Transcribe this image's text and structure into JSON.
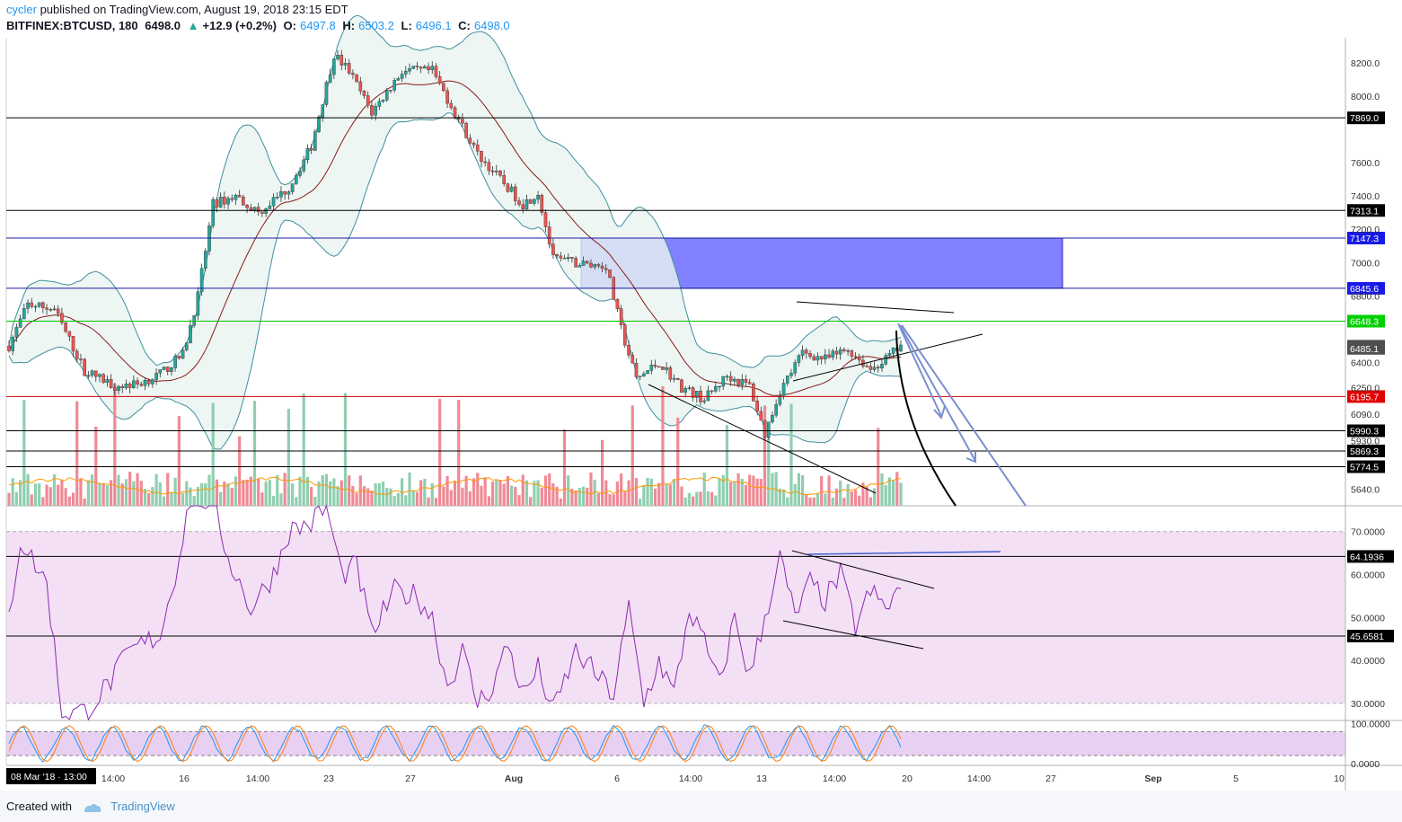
{
  "header": {
    "publisher": "cycler",
    "published_text": "published on TradingView.com, August 19, 2018 23:15 EDT",
    "symbol": "BITFINEX:BTCUSD, 180",
    "last": "6498.0",
    "change": "+12.9 (+0.2%)",
    "o_label": "O:",
    "o_val": "6497.8",
    "h_label": "H:",
    "h_val": "6503.2",
    "l_label": "L:",
    "l_val": "6496.1",
    "c_label": "C:",
    "c_val": "6498.0"
  },
  "footer": {
    "created_with": "Created with",
    "brand": "TradingView"
  },
  "colors": {
    "up": "#26a69a",
    "down": "#ef5350",
    "bb": "#3f8f9f",
    "bb_fill": "#e8f4f0",
    "ma": "#8b1a1a",
    "zone": "#6b6bff",
    "rsi": "#8b2bb0",
    "rsi_bg": "#f3e0f5",
    "stoch_k": "#2196f3",
    "stoch_d": "#ff7f0e",
    "stoch_bg": "#e8d0f3",
    "vol_ma": "#ff9800"
  },
  "chart_data": [
    {
      "type": "candlestick",
      "title": "",
      "ylim": [
        5540,
        8350
      ],
      "x_ticks": [
        "14:00",
        "16",
        "14:00",
        "23",
        "27",
        "Aug",
        "6",
        "14:00",
        "13",
        "14:00",
        "20",
        "14:00",
        "27",
        "Sep",
        "5",
        "10"
      ],
      "y_ticks": [
        8200,
        8000,
        7600,
        7400,
        7200,
        7000,
        6800,
        6400,
        6250,
        6090,
        5930,
        5640
      ],
      "y_tick_labels": [
        "8200.0",
        "8000.0",
        "7600.0",
        "7400.0",
        "7200.0",
        "7000.0",
        "6800.0",
        "6400.0",
        "6250.0",
        "6090.0",
        "5930.0",
        "5640.0"
      ],
      "cursor_date_label": "08 Mar '18 · 13:00",
      "price_path": [
        [
          0,
          6500
        ],
        [
          5,
          6750
        ],
        [
          12,
          6720
        ],
        [
          20,
          6350
        ],
        [
          28,
          6260
        ],
        [
          34,
          6270
        ],
        [
          40,
          6330
        ],
        [
          46,
          6450
        ],
        [
          50,
          6800
        ],
        [
          54,
          7350
        ],
        [
          60,
          7400
        ],
        [
          66,
          7300
        ],
        [
          74,
          7450
        ],
        [
          80,
          7700
        ],
        [
          86,
          8250
        ],
        [
          90,
          8150
        ],
        [
          96,
          7900
        ],
        [
          104,
          8150
        ],
        [
          112,
          8150
        ],
        [
          118,
          7900
        ],
        [
          124,
          7650
        ],
        [
          130,
          7500
        ],
        [
          136,
          7350
        ],
        [
          140,
          7420
        ],
        [
          144,
          7020
        ],
        [
          152,
          6990
        ],
        [
          158,
          6980
        ],
        [
          162,
          6600
        ],
        [
          166,
          6300
        ],
        [
          172,
          6400
        ],
        [
          178,
          6250
        ],
        [
          184,
          6180
        ],
        [
          190,
          6320
        ],
        [
          196,
          6260
        ],
        [
          200,
          5970
        ],
        [
          204,
          6230
        ],
        [
          210,
          6460
        ],
        [
          216,
          6420
        ],
        [
          222,
          6480
        ],
        [
          228,
          6360
        ],
        [
          232,
          6420
        ],
        [
          236,
          6500
        ]
      ],
      "horizontal_levels": [
        {
          "value": 7869.0,
          "label": "7869.0",
          "color": "#000000",
          "badge": "#000000"
        },
        {
          "value": 7313.1,
          "label": "7313.1",
          "color": "#000000",
          "badge": "#000000"
        },
        {
          "value": 7147.3,
          "label": "7147.3",
          "color": "#1a1aa0",
          "badge": "#1a1ae6"
        },
        {
          "value": 6845.6,
          "label": "6845.6",
          "color": "#1a1aa0",
          "badge": "#1a1ae6"
        },
        {
          "value": 6648.3,
          "label": "6648.3",
          "color": "#00c800",
          "badge": "#00d000"
        },
        {
          "value": 6195.7,
          "label": "6195.7",
          "color": "#d00000",
          "badge": "#e00000"
        },
        {
          "value": 5990.3,
          "label": "5990.3",
          "color": "#000000",
          "badge": "#000000"
        },
        {
          "value": 5869.3,
          "label": "5869.3",
          "color": "#000000",
          "badge": "#000000"
        },
        {
          "value": 5774.5,
          "label": "5774.5",
          "color": "#000000",
          "badge": "#000000"
        }
      ],
      "price_badges": [
        {
          "value": 6498.0,
          "label": "6498.0",
          "badge": "#4f4f4f"
        },
        {
          "value": 6485.1,
          "label": "6485.1",
          "badge": "#4f4f4f"
        }
      ],
      "zone": {
        "from": 6845.6,
        "to": 7147.3
      }
    },
    {
      "type": "line",
      "title": "",
      "ylim": [
        26,
        76
      ],
      "y_ticks": [
        70,
        60,
        50,
        40,
        30
      ],
      "y_tick_labels": [
        "70.0000",
        "60.0000",
        "50.0000",
        "40.0000",
        "30.0000"
      ],
      "band": [
        30,
        70
      ],
      "levels": [
        {
          "value": 64.1936,
          "label": "64.1936"
        },
        {
          "value": 45.6581,
          "label": "45.6581"
        }
      ],
      "rsi_path": [
        [
          0,
          50
        ],
        [
          3,
          68
        ],
        [
          10,
          58
        ],
        [
          14,
          28
        ],
        [
          20,
          28
        ],
        [
          26,
          34
        ],
        [
          32,
          42
        ],
        [
          40,
          46
        ],
        [
          44,
          60
        ],
        [
          48,
          78
        ],
        [
          54,
          77
        ],
        [
          58,
          64
        ],
        [
          64,
          52
        ],
        [
          70,
          60
        ],
        [
          74,
          70
        ],
        [
          80,
          72
        ],
        [
          84,
          76
        ],
        [
          88,
          60
        ],
        [
          92,
          62
        ],
        [
          96,
          46
        ],
        [
          102,
          56
        ],
        [
          108,
          55
        ],
        [
          112,
          50
        ],
        [
          116,
          34
        ],
        [
          120,
          42
        ],
        [
          124,
          30
        ],
        [
          128,
          34
        ],
        [
          132,
          44
        ],
        [
          136,
          32
        ],
        [
          140,
          38
        ],
        [
          144,
          28
        ],
        [
          150,
          42
        ],
        [
          156,
          36
        ],
        [
          160,
          32
        ],
        [
          164,
          52
        ],
        [
          168,
          30
        ],
        [
          172,
          40
        ],
        [
          176,
          32
        ],
        [
          180,
          52
        ],
        [
          184,
          44
        ],
        [
          188,
          34
        ],
        [
          192,
          50
        ],
        [
          196,
          36
        ],
        [
          200,
          50
        ],
        [
          204,
          64
        ],
        [
          208,
          50
        ],
        [
          212,
          58
        ],
        [
          216,
          54
        ],
        [
          220,
          60
        ],
        [
          224,
          48
        ],
        [
          228,
          56
        ],
        [
          232,
          52
        ],
        [
          236,
          57
        ]
      ]
    },
    {
      "type": "line",
      "title": "",
      "ylim": [
        -5,
        108
      ],
      "y_ticks": [
        100,
        0
      ],
      "y_tick_labels": [
        "100.0000",
        "0.0000"
      ],
      "band": [
        20,
        80
      ]
    }
  ]
}
